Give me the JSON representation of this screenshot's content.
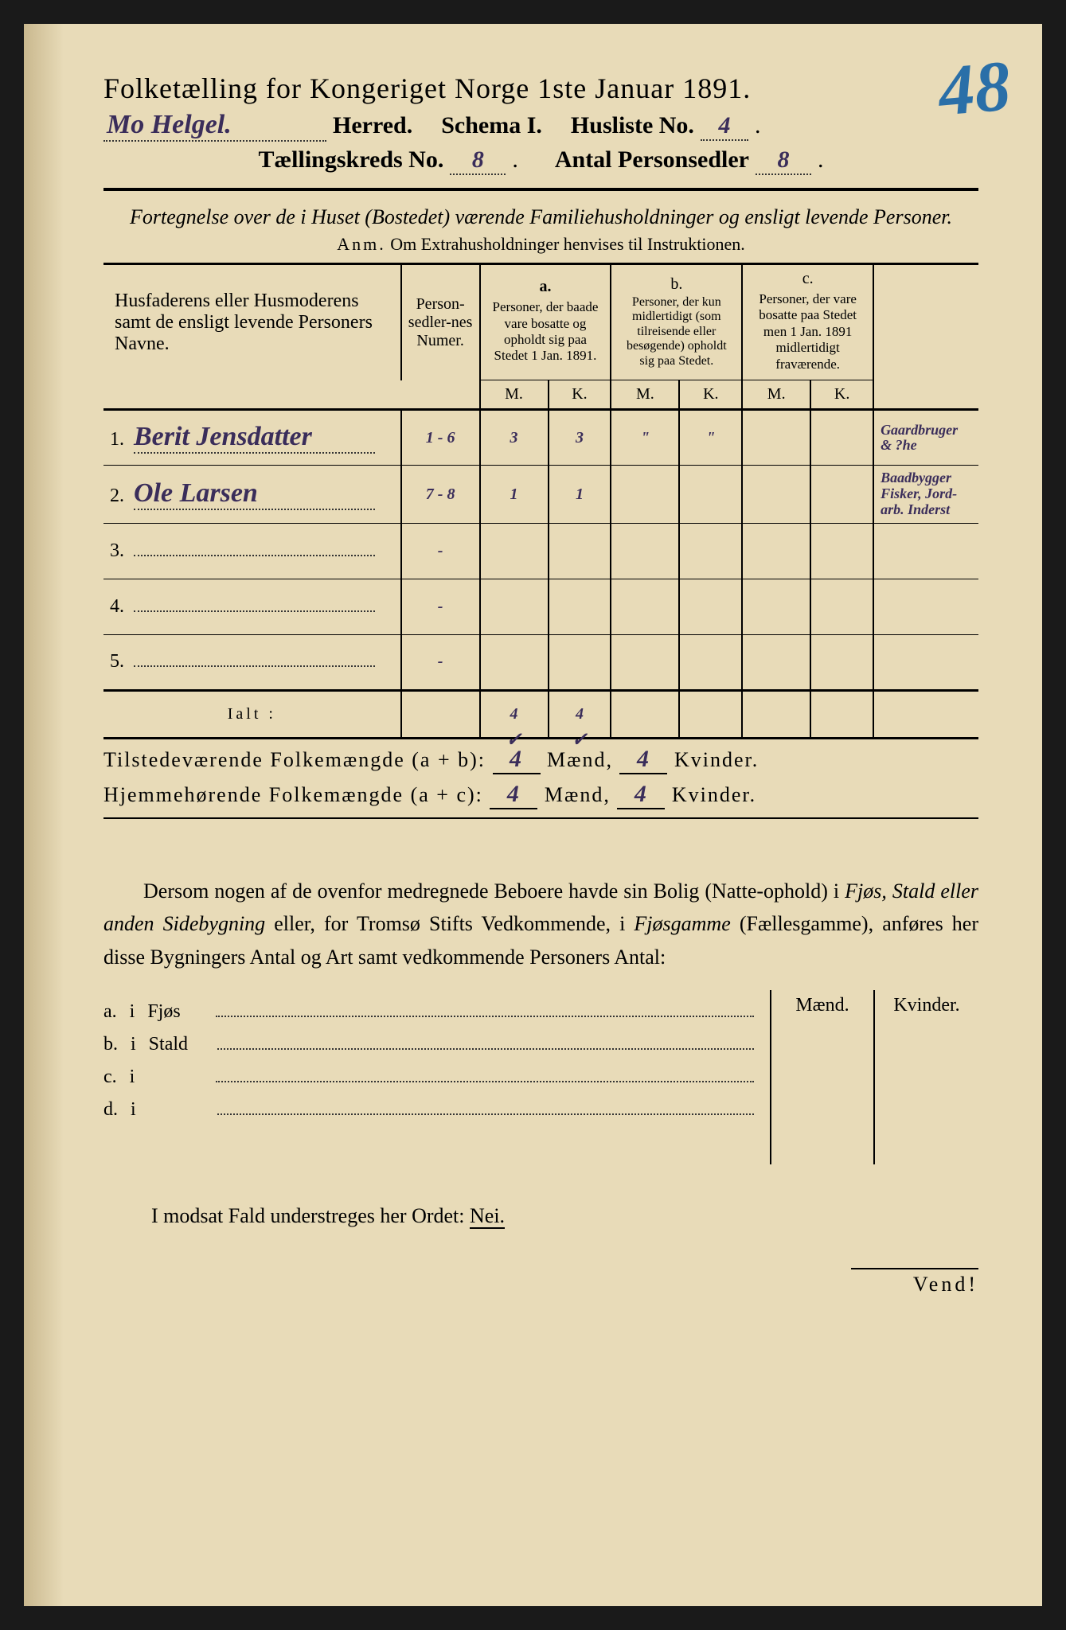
{
  "page_number_corner": "48",
  "title": "Folketælling for Kongeriget Norge 1ste Januar 1891.",
  "header": {
    "herred_value": "Mo Helgel.",
    "herred_label": "Herred.",
    "schema_label": "Schema I.",
    "husliste_label": "Husliste No.",
    "husliste_value": "4",
    "kreds_label": "Tællingskreds No.",
    "kreds_value": "8",
    "antal_label": "Antal Personsedler",
    "antal_value": "8"
  },
  "description": "Fortegnelse over de i Huset (Bostedet) værende Familiehusholdninger og ensligt levende Personer.",
  "anm_prefix": "Anm.",
  "anm_text": "Om Extrahusholdninger henvises til Instruktionen.",
  "columns": {
    "name_head": "Husfaderens eller Husmoderens samt de ensligt levende Personers Navne.",
    "numer_head": "Person-sedler-nes Numer.",
    "a_head": "a.",
    "a_text": "Personer, der baade vare bosatte og opholdt sig paa Stedet 1 Jan. 1891.",
    "b_head": "b.",
    "b_text": "Personer, der kun midlertidigt (som tilreisende eller besøgende) opholdt sig paa Stedet.",
    "c_head": "c.",
    "c_text": "Personer, der vare bosatte paa Stedet men 1 Jan. 1891 midlertidigt fraværende.",
    "m": "M.",
    "k": "K."
  },
  "rows": [
    {
      "n": "1.",
      "name": "Berit Jensdatter",
      "numer": "1 - 6",
      "a_m": "3",
      "a_k": "3",
      "b_m": "\"",
      "b_k": "\"",
      "c_m": "",
      "c_k": "",
      "annot": "Gaardbruger & ?he"
    },
    {
      "n": "2.",
      "name": "Ole Larsen",
      "numer": "7 - 8",
      "a_m": "1",
      "a_k": "1",
      "b_m": "",
      "b_k": "",
      "c_m": "",
      "c_k": "",
      "annot": "Baadbygger Fisker, Jord-arb. Inderst"
    },
    {
      "n": "3.",
      "name": "",
      "numer": "-",
      "a_m": "",
      "a_k": "",
      "b_m": "",
      "b_k": "",
      "c_m": "",
      "c_k": "",
      "annot": ""
    },
    {
      "n": "4.",
      "name": "",
      "numer": "-",
      "a_m": "",
      "a_k": "",
      "b_m": "",
      "b_k": "",
      "c_m": "",
      "c_k": "",
      "annot": ""
    },
    {
      "n": "5.",
      "name": "",
      "numer": "-",
      "a_m": "",
      "a_k": "",
      "b_m": "",
      "b_k": "",
      "c_m": "",
      "c_k": "",
      "annot": ""
    }
  ],
  "ialt": {
    "label": "Ialt :",
    "a_m": "4",
    "a_k": "4"
  },
  "summary": {
    "tilstede_label": "Tilstedeværende Folkemængde (a + b):",
    "tilstede_m": "4",
    "tilstede_k": "4",
    "hjemme_label": "Hjemmehørende Folkemængde (a + c):",
    "hjemme_m": "4",
    "hjemme_k": "4",
    "maend": "Mænd,",
    "kvinder": "Kvinder."
  },
  "para": {
    "t1": "Dersom nogen af de ovenfor medregnede Beboere havde sin Bolig (Natte-ophold) i ",
    "i1": "Fjøs, Stald eller anden Sidebygning",
    "t2": " eller, for Tromsø Stifts Vedkommende, i ",
    "i2": "Fjøsgamme",
    "t3": " (Fællesgamme), anføres her disse Bygningers Antal og Art samt vedkommende Personers Antal:"
  },
  "sidebld": {
    "maend": "Mænd.",
    "kvinder": "Kvinder.",
    "rows": [
      {
        "l": "a.",
        "i": "i",
        "t": "Fjøs"
      },
      {
        "l": "b.",
        "i": "i",
        "t": "Stald"
      },
      {
        "l": "c.",
        "i": "i",
        "t": ""
      },
      {
        "l": "d.",
        "i": "i",
        "t": ""
      }
    ]
  },
  "nei_line_pre": "I modsat Fald understreges her Ordet: ",
  "nei": "Nei.",
  "vend": "Vend!",
  "colors": {
    "paper": "#e8dbb8",
    "ink": "#1a1a1a",
    "handwriting": "#3a2d5a",
    "pencil_blue": "#2a6fa8"
  },
  "typography": {
    "title_pt": 36,
    "header_pt": 30,
    "body_pt": 26,
    "table_head_pt": 20,
    "handwriting_pt": 34
  }
}
